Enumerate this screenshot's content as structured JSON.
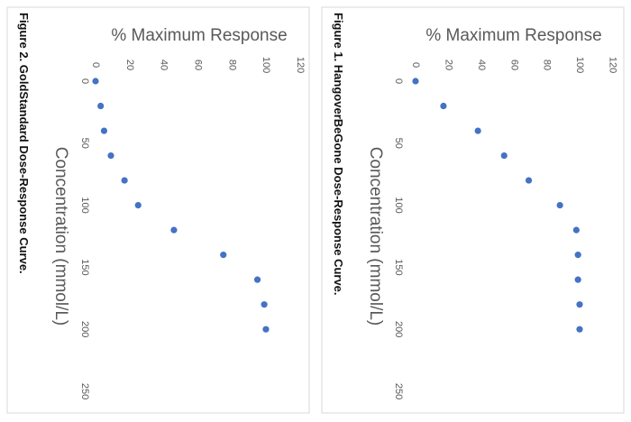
{
  "chart_data": [
    {
      "type": "scatter",
      "caption": "Figure 1. HangoverBeGone Dose-Response Curve.",
      "xlabel": "Concentration (mmol/L)",
      "ylabel": "% Maximum Response",
      "xlim": [
        0,
        250
      ],
      "ylim": [
        0,
        120
      ],
      "xticks": [
        "0",
        "50",
        "100",
        "150",
        "200",
        "250"
      ],
      "yticks": [
        "0",
        "20",
        "40",
        "60",
        "80",
        "100",
        "120"
      ],
      "grid": false,
      "marker_color": "#4472c4",
      "x": [
        0,
        20,
        40,
        60,
        80,
        100,
        120,
        140,
        160,
        180,
        200
      ],
      "y": [
        0,
        17,
        38,
        54,
        69,
        88,
        98,
        99,
        99,
        100,
        100
      ]
    },
    {
      "type": "scatter",
      "caption": "Figure 2. GoldStandard Dose-Response Curve.",
      "xlabel": "Concentration (mmol/L)",
      "ylabel": "% Maximum Response",
      "xlim": [
        0,
        250
      ],
      "ylim": [
        0,
        120
      ],
      "xticks": [
        "0",
        "50",
        "100",
        "150",
        "200",
        "250"
      ],
      "yticks": [
        "0",
        "20",
        "40",
        "60",
        "80",
        "100",
        "120"
      ],
      "grid": false,
      "marker_color": "#4472c4",
      "x": [
        0,
        20,
        40,
        60,
        80,
        100,
        120,
        140,
        160,
        180,
        200
      ],
      "y": [
        0,
        3,
        5,
        9,
        17,
        25,
        46,
        75,
        95,
        99,
        100
      ]
    }
  ]
}
